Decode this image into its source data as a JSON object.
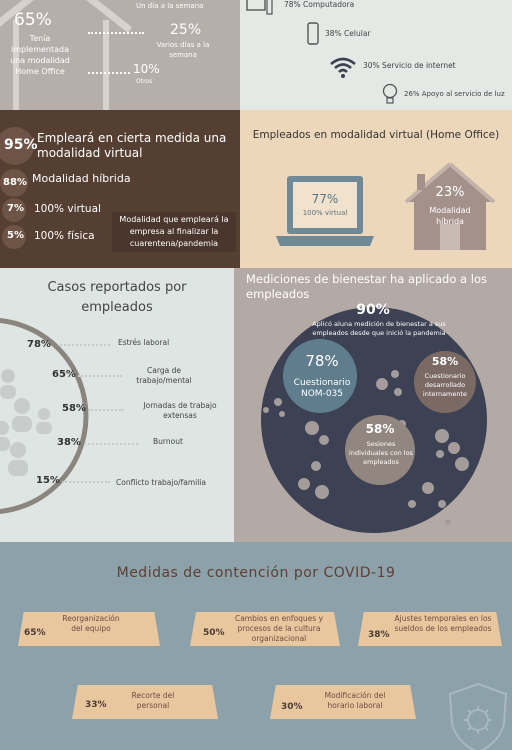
{
  "top_left": {
    "pct_main": "65%",
    "main_text": "Tenía implementada una modalidad Home Office",
    "item1_text": "Un día a la semana",
    "item2_pct": "25%",
    "item2_text": "Varios días a la semana",
    "item3_pct": "10%",
    "item3_text": "Otros"
  },
  "top_right": {
    "items": [
      {
        "text": "78% Computadora",
        "icon": "computer-icon"
      },
      {
        "text": "38% Celular",
        "icon": "phone-icon"
      },
      {
        "text": "30% Servicio de internet",
        "icon": "wifi-icon"
      },
      {
        "text": "26% Apoyo al servicio de luz",
        "icon": "lightbulb-icon"
      }
    ]
  },
  "future": {
    "rows": [
      {
        "pct": "95%",
        "label": "Empleará en cierta medida una modalidad virtual"
      },
      {
        "pct": "88%",
        "label": "Modalidad híbrida"
      },
      {
        "pct": "7%",
        "label": "100% virtual"
      },
      {
        "pct": "5%",
        "label": "100% física"
      }
    ],
    "caption": "Modalidad  que empleará la empresa al finalizar la cuarentena/pandemia"
  },
  "virtual": {
    "title": "Empleados en modalidad virtual (Home Office)",
    "laptop_pct": "77%",
    "laptop_label": "100% virtual",
    "house_pct": "23%",
    "house_label": "Modalidad híbrida"
  },
  "cases": {
    "title": "Casos reportados por empleados",
    "items": [
      {
        "pct": "78%",
        "label": "Estrés laboral"
      },
      {
        "pct": "65%",
        "label": "Carga de trabajo/mental"
      },
      {
        "pct": "58%",
        "label": "Jornadas de trabajo extensas"
      },
      {
        "pct": "38%",
        "label": "Burnout"
      },
      {
        "pct": "15%",
        "label": "Conflicto trabajo/familia"
      }
    ]
  },
  "wellbeing": {
    "title": "Mediciones de bienestar ha aplicado a los empleados",
    "main_pct": "90%",
    "main_text": "Aplicó aluna medición de bienestar a sus empleados desde que inició la pandemia",
    "c1_pct": "78%",
    "c1_label": "Cuestionario NOM-035",
    "c2_pct": "58%",
    "c2_label": "Cuestionario desarrollado internamente",
    "c3_pct": "58%",
    "c3_label": "Sesiones individuales con los empleados"
  },
  "covid": {
    "title": "Medidas de contención por COVID-19",
    "items": [
      {
        "pct": "65%",
        "label": "Reorganización del equipo"
      },
      {
        "pct": "50%",
        "label": "Cambios en enfoques y procesos de la cultura organizacional"
      },
      {
        "pct": "38%",
        "label": "Ajustes temporales en los sueldos de los empleados"
      },
      {
        "pct": "33%",
        "label": "Recorte del personal"
      },
      {
        "pct": "30%",
        "label": "Modificación del horario laboral"
      }
    ]
  },
  "colors": {
    "brown": "#553e32",
    "beige": "#ecd7bb",
    "slate": "#5f7d8c",
    "navy": "#3a3f50",
    "ribbon": "#e8c79f"
  }
}
